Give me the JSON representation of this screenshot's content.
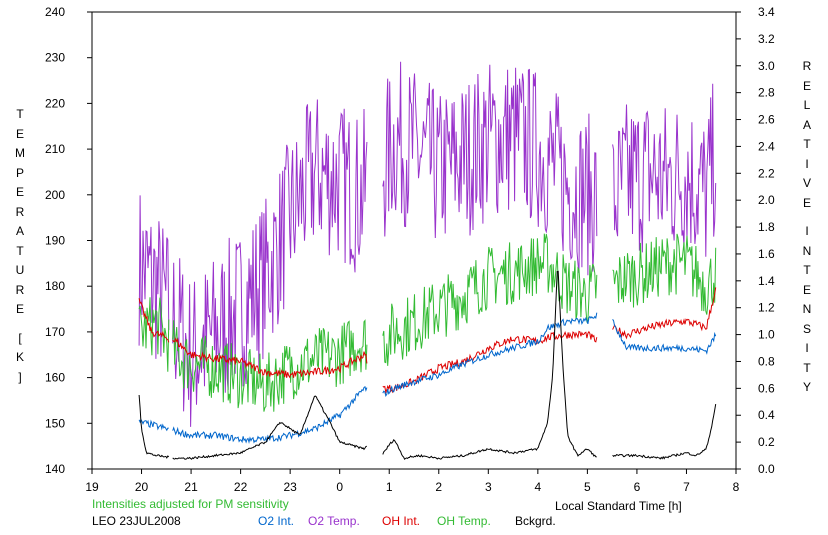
{
  "chart_data": {
    "type": "line",
    "title": "",
    "xlabel": "Local Standard Time [h]",
    "ylabel_left": "TEMPERATURE [K]",
    "ylabel_right": "RELATIVE INTENSITY",
    "x_ticks": [
      "19",
      "20",
      "21",
      "22",
      "23",
      "0",
      "1",
      "2",
      "3",
      "4",
      "5",
      "6",
      "7",
      "8"
    ],
    "y_left_ticks": [
      "140",
      "150",
      "160",
      "170",
      "180",
      "190",
      "200",
      "210",
      "220",
      "230",
      "240"
    ],
    "y_right_ticks": [
      "0.0",
      "0.2",
      "0.4",
      "0.6",
      "0.8",
      "1.0",
      "1.2",
      "1.4",
      "1.6",
      "1.8",
      "2.0",
      "2.2",
      "2.4",
      "2.6",
      "2.8",
      "3.0",
      "3.2",
      "3.4"
    ],
    "xlim": [
      19,
      32
    ],
    "ylim_left": [
      140,
      240
    ],
    "ylim_right": [
      0,
      3.4
    ],
    "grid": false,
    "note": "Intensities adjusted for PM sensitivity",
    "station": "LEO 23JUL2008",
    "legend": [
      {
        "name": "O2 Int.",
        "color": "#0066cc"
      },
      {
        "name": "O2 Temp.",
        "color": "#9933cc"
      },
      {
        "name": "OH Int.",
        "color": "#dd0000"
      },
      {
        "name": "OH Temp.",
        "color": "#33bb33"
      },
      {
        "name": "Bckgrd.",
        "color": "#000000"
      }
    ],
    "gaps": [
      [
        20.55,
        20.62
      ],
      [
        24.55,
        24.85
      ],
      [
        29.2,
        29.5
      ]
    ],
    "series": [
      {
        "name": "O2 Temp.",
        "axis": "left",
        "color": "#9933cc",
        "noise": 18,
        "x": [
          19.95,
          20.3,
          20.7,
          21.0,
          21.5,
          22.0,
          22.5,
          23.0,
          23.5,
          24.0,
          24.4,
          24.85,
          25.1,
          25.5,
          26.0,
          26.5,
          27.0,
          27.5,
          28.0,
          28.2,
          28.6,
          29.0,
          29.2,
          29.5,
          29.8,
          30.2,
          30.6,
          31.0,
          31.4,
          31.6
        ],
        "y": [
          185,
          180,
          172,
          165,
          170,
          175,
          182,
          195,
          205,
          203,
          200,
          205,
          212,
          210,
          205,
          208,
          212,
          213,
          210,
          208,
          202,
          200,
          200,
          198,
          203,
          205,
          203,
          205,
          200,
          210
        ]
      },
      {
        "name": "OH Temp.",
        "axis": "left",
        "color": "#33bb33",
        "noise": 7,
        "x": [
          19.95,
          20.3,
          20.7,
          21.0,
          21.5,
          22.0,
          22.5,
          23.0,
          23.5,
          24.0,
          24.4,
          24.85,
          25.1,
          25.5,
          26.0,
          26.5,
          27.0,
          27.5,
          28.0,
          28.2,
          28.6,
          29.0,
          29.2,
          29.5,
          29.8,
          30.2,
          30.6,
          31.0,
          31.4,
          31.6
        ],
        "y": [
          170,
          172,
          165,
          163,
          162,
          160,
          158,
          162,
          164,
          165,
          168,
          168,
          170,
          172,
          175,
          178,
          182,
          183,
          185,
          185,
          180,
          178,
          180,
          180,
          182,
          183,
          185,
          185,
          180,
          183
        ]
      },
      {
        "name": "OH Int.",
        "axis": "right",
        "color": "#dd0000",
        "noise": 0.03,
        "x": [
          19.95,
          20.2,
          20.7,
          21.0,
          21.5,
          22.0,
          22.5,
          23.0,
          23.5,
          24.0,
          24.5,
          24.85,
          25.1,
          25.5,
          26.0,
          26.5,
          27.0,
          27.5,
          28.0,
          28.2,
          28.6,
          29.0,
          29.2,
          29.5,
          29.8,
          30.2,
          30.6,
          31.0,
          31.4,
          31.6
        ],
        "y": [
          1.25,
          1.02,
          0.95,
          0.85,
          0.82,
          0.8,
          0.72,
          0.7,
          0.72,
          0.75,
          0.85,
          0.6,
          0.6,
          0.65,
          0.75,
          0.8,
          0.9,
          0.97,
          0.95,
          0.98,
          1.0,
          1.0,
          0.95,
          1.05,
          1.0,
          1.05,
          1.08,
          1.1,
          1.05,
          1.35
        ]
      },
      {
        "name": "O2 Int.",
        "axis": "right",
        "color": "#0066cc",
        "noise": 0.025,
        "x": [
          19.95,
          20.2,
          20.7,
          21.0,
          21.5,
          22.0,
          22.5,
          23.0,
          23.5,
          24.0,
          24.5,
          24.85,
          25.1,
          25.5,
          26.0,
          26.5,
          27.0,
          27.5,
          28.0,
          28.2,
          28.6,
          29.0,
          29.2,
          29.5,
          29.8,
          30.2,
          30.6,
          31.0,
          31.4,
          31.6
        ],
        "y": [
          0.35,
          0.33,
          0.28,
          0.25,
          0.25,
          0.22,
          0.22,
          0.25,
          0.3,
          0.4,
          0.6,
          0.55,
          0.6,
          0.65,
          0.7,
          0.78,
          0.85,
          0.9,
          0.95,
          1.05,
          1.1,
          1.1,
          1.15,
          1.1,
          0.9,
          0.9,
          0.9,
          0.9,
          0.88,
          1.0
        ]
      },
      {
        "name": "Bckgrd.",
        "axis": "right",
        "color": "#000000",
        "noise": 0.008,
        "x": [
          19.95,
          20.0,
          20.1,
          20.3,
          20.7,
          21.0,
          21.5,
          22.0,
          22.5,
          22.8,
          23.2,
          23.5,
          23.8,
          24.0,
          24.5,
          24.7,
          24.85,
          25.0,
          25.1,
          25.3,
          25.6,
          26.0,
          26.5,
          27.0,
          27.5,
          28.0,
          28.2,
          28.3,
          28.4,
          28.5,
          28.6,
          28.8,
          29.0,
          29.2,
          29.5,
          30.0,
          30.5,
          31.0,
          31.2,
          31.4,
          31.5,
          31.6
        ],
        "y": [
          0.55,
          0.3,
          0.12,
          0.1,
          0.08,
          0.08,
          0.1,
          0.12,
          0.2,
          0.35,
          0.25,
          0.55,
          0.35,
          0.2,
          0.15,
          0.25,
          0.1,
          0.18,
          0.22,
          0.08,
          0.1,
          0.08,
          0.1,
          0.15,
          0.12,
          0.15,
          0.35,
          0.7,
          1.55,
          0.8,
          0.25,
          0.1,
          0.15,
          0.08,
          0.1,
          0.1,
          0.08,
          0.12,
          0.1,
          0.15,
          0.3,
          0.5
        ]
      }
    ]
  }
}
